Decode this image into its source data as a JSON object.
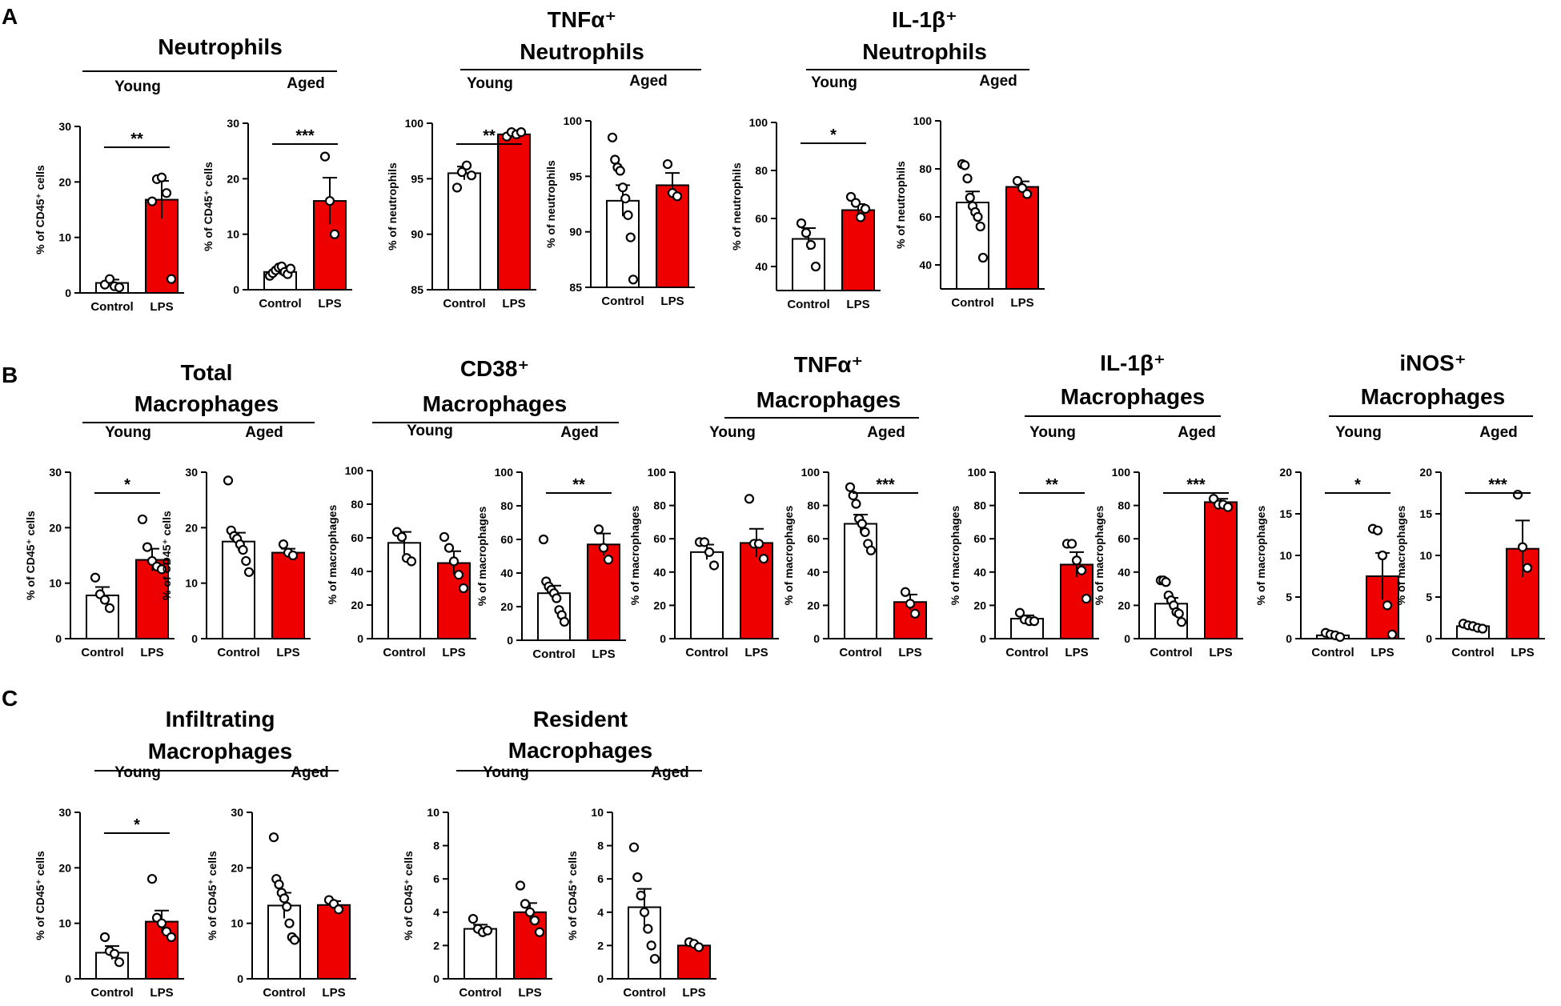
{
  "figure": {
    "panel_letters": [
      "A",
      "B",
      "C"
    ],
    "group_labels": {
      "young": "Young",
      "aged": "Aged"
    },
    "x_labels": [
      "Control",
      "LPS"
    ],
    "colors": {
      "control_fill": "#ffffff",
      "lps_fill": "#ee0000",
      "stroke": "#000000"
    }
  },
  "chart_data": [
    {
      "id": "A1",
      "type": "bar",
      "panel": "A",
      "title_lines": [
        "Neutrophils"
      ],
      "group": "Young",
      "categories": [
        "Control",
        "LPS"
      ],
      "values": [
        1.8,
        16.8
      ],
      "errors": [
        0.6,
        3.4
      ],
      "points": [
        [
          1.5,
          2.5,
          1.2,
          1.0
        ],
        [
          16.5,
          20.5,
          20.8,
          18.0,
          2.5
        ]
      ],
      "ylim": [
        0,
        30
      ],
      "yticks": [
        0,
        10,
        20,
        30
      ],
      "ylabel": "% of CD45⁺ cells",
      "sig": "**"
    },
    {
      "id": "A2",
      "type": "bar",
      "panel": "A",
      "group": "Aged",
      "categories": [
        "Control",
        "LPS"
      ],
      "values": [
        3.2,
        16.0
      ],
      "errors": [
        0.5,
        4.2
      ],
      "points": [
        [
          2.5,
          3.0,
          3.5,
          4.0,
          4.2,
          3.2,
          2.8,
          3.8
        ],
        [
          24.0,
          16.0,
          10.0
        ]
      ],
      "ylim": [
        0,
        30
      ],
      "yticks": [
        0,
        10,
        20,
        30
      ],
      "ylabel": "% of CD45⁺ cells",
      "sig": "***"
    },
    {
      "id": "A3",
      "type": "bar",
      "panel": "A",
      "title_lines": [
        "TNFα⁺",
        "Neutrophils"
      ],
      "group": "Young",
      "categories": [
        "Control",
        "LPS"
      ],
      "values": [
        95.5,
        99.0
      ],
      "errors": [
        0.6,
        0.25
      ],
      "points": [
        [
          94.2,
          95.6,
          96.2,
          95.3
        ],
        [
          98.8,
          99.2,
          99.0,
          99.2
        ]
      ],
      "ylim": [
        85,
        100
      ],
      "yticks": [
        85,
        90,
        95,
        100
      ],
      "ylabel": "% of neutrophils",
      "sig": "**"
    },
    {
      "id": "A4",
      "type": "bar",
      "panel": "A",
      "group": "Aged",
      "categories": [
        "Control",
        "LPS"
      ],
      "values": [
        92.8,
        94.2
      ],
      "errors": [
        1.4,
        1.1
      ],
      "points": [
        [
          98.5,
          96.5,
          95.8,
          95.5,
          94.0,
          93.0,
          91.5,
          89.5,
          85.7
        ],
        [
          96.1,
          93.5,
          93.2
        ]
      ],
      "ylim": [
        85,
        100
      ],
      "yticks": [
        85,
        90,
        95,
        100
      ],
      "ylabel": "% of neutrophils",
      "sig": ""
    },
    {
      "id": "A5",
      "type": "bar",
      "panel": "A",
      "title_lines": [
        "IL-1β⁺",
        "Neutrophils"
      ],
      "group": "Young",
      "categories": [
        "Control",
        "LPS"
      ],
      "values": [
        51.5,
        63.5
      ],
      "errors": [
        4.5,
        2.5
      ],
      "points": [
        [
          58.0,
          54.0,
          49.0,
          40.0
        ],
        [
          69.0,
          66.5,
          60.5,
          64.0
        ]
      ],
      "ylim": [
        30,
        100
      ],
      "yticks": [
        40,
        60,
        80,
        100
      ],
      "ylabel": "% of neutrophils",
      "sig": "*"
    },
    {
      "id": "A6",
      "type": "bar",
      "panel": "A",
      "group": "Aged",
      "categories": [
        "Control",
        "LPS"
      ],
      "values": [
        66.0,
        72.5
      ],
      "errors": [
        4.6,
        2.3
      ],
      "points": [
        [
          82.0,
          81.5,
          76.0,
          68.0,
          64.5,
          62.0,
          60.0,
          56.0,
          43.0
        ],
        [
          75.0,
          72.0,
          69.5
        ]
      ],
      "ylim": [
        30,
        100
      ],
      "yticks": [
        40,
        60,
        80,
        100
      ],
      "ylabel": "% of neutrophils",
      "sig": ""
    },
    {
      "id": "B1",
      "type": "bar",
      "panel": "B",
      "title_lines": [
        "Total",
        "Macrophages"
      ],
      "group": "Young",
      "categories": [
        "Control",
        "LPS"
      ],
      "values": [
        7.8,
        14.2
      ],
      "errors": [
        1.5,
        2.0
      ],
      "points": [
        [
          11.0,
          8.0,
          7.0,
          5.5
        ],
        [
          21.5,
          16.5,
          14.0,
          13.0,
          12.5
        ]
      ],
      "ylim": [
        0,
        30
      ],
      "yticks": [
        0,
        10,
        20,
        30
      ],
      "ylabel": "% of CD45⁺ cells",
      "sig": "*"
    },
    {
      "id": "B2",
      "type": "bar",
      "panel": "B",
      "group": "Aged",
      "categories": [
        "Control",
        "LPS"
      ],
      "values": [
        17.5,
        15.5
      ],
      "errors": [
        1.6,
        0.7
      ],
      "points": [
        [
          28.5,
          19.5,
          18.5,
          18.0,
          17.0,
          16.0,
          14.0,
          12.0
        ],
        [
          17.0,
          15.5,
          15.0
        ]
      ],
      "ylim": [
        0,
        30
      ],
      "yticks": [
        0,
        10,
        20,
        30
      ],
      "ylabel": "% of CD45⁺ cells",
      "sig": ""
    },
    {
      "id": "B3",
      "type": "bar",
      "panel": "B",
      "title_lines": [
        "CD38⁺",
        "Macrophages"
      ],
      "group": "Young",
      "categories": [
        "Control",
        "LPS"
      ],
      "values": [
        57.0,
        45.0
      ],
      "errors": [
        6.5,
        7.0
      ],
      "points": [
        [
          63.5,
          60.5,
          48.0,
          46.0
        ],
        [
          60.5,
          54.0,
          46.0,
          38.0,
          30.0
        ]
      ],
      "ylim": [
        0,
        100
      ],
      "yticks": [
        0,
        20,
        40,
        60,
        80,
        100
      ],
      "ylabel": "% of macrophages",
      "sig": ""
    },
    {
      "id": "B4",
      "type": "bar",
      "panel": "B",
      "group": "Aged",
      "categories": [
        "Control",
        "LPS"
      ],
      "values": [
        28.0,
        57.0
      ],
      "errors": [
        4.5,
        6.5
      ],
      "points": [
        [
          60.0,
          35.0,
          32.0,
          30.0,
          28.0,
          25.0,
          18.0,
          15.0,
          11.0
        ],
        [
          66.0,
          55.0,
          48.0
        ]
      ],
      "ylim": [
        0,
        100
      ],
      "yticks": [
        0,
        20,
        40,
        60,
        80,
        100
      ],
      "ylabel": "% of macrophages",
      "sig": "**"
    },
    {
      "id": "B5",
      "type": "bar",
      "panel": "B",
      "title_lines": [
        "TNFα⁺",
        "Macrophages"
      ],
      "group": "Young",
      "categories": [
        "Control",
        "LPS"
      ],
      "values": [
        52.0,
        57.5
      ],
      "errors": [
        4.5,
        8.5
      ],
      "points": [
        [
          58.0,
          58.0,
          52.0,
          44.0
        ],
        [
          84.0,
          57.0,
          57.0,
          48.0
        ]
      ],
      "ylim": [
        0,
        100
      ],
      "yticks": [
        0,
        20,
        40,
        60,
        80,
        100
      ],
      "ylabel": "% of macrophages",
      "sig": ""
    },
    {
      "id": "B6",
      "type": "bar",
      "panel": "B",
      "group": "Aged",
      "categories": [
        "Control",
        "LPS"
      ],
      "values": [
        69.0,
        22.0
      ],
      "errors": [
        5.5,
        4.5
      ],
      "points": [
        [
          91.0,
          86.0,
          81.0,
          72.0,
          69.0,
          64.0,
          57.0,
          53.0
        ],
        [
          28.0,
          21.0,
          15.0
        ]
      ],
      "ylim": [
        0,
        100
      ],
      "yticks": [
        0,
        20,
        40,
        60,
        80,
        100
      ],
      "ylabel": "% of macrophages",
      "sig": "***"
    },
    {
      "id": "B7",
      "type": "bar",
      "panel": "B",
      "title_lines": [
        "IL-1β⁺",
        "Macrophages"
      ],
      "group": "Young",
      "categories": [
        "Control",
        "LPS"
      ],
      "values": [
        12.0,
        44.5
      ],
      "errors": [
        2.0,
        7.5
      ],
      "points": [
        [
          15.5,
          11.5,
          10.5,
          10.5
        ],
        [
          57.0,
          57.0,
          47.0,
          41.0,
          24.0
        ]
      ],
      "ylim": [
        0,
        100
      ],
      "yticks": [
        0,
        20,
        40,
        60,
        80,
        100
      ],
      "ylabel": "% of macrophages",
      "sig": "**"
    },
    {
      "id": "B8",
      "type": "bar",
      "panel": "B",
      "group": "Aged",
      "categories": [
        "Control",
        "LPS"
      ],
      "values": [
        21.0,
        82.0
      ],
      "errors": [
        3.5,
        2.0
      ],
      "points": [
        [
          35.0,
          35.0,
          34.0,
          26.0,
          23.0,
          20.0,
          16.0,
          15.0,
          10.0
        ],
        [
          84.0,
          80.5,
          80.5,
          79.0
        ]
      ],
      "ylim": [
        0,
        100
      ],
      "yticks": [
        0,
        20,
        40,
        60,
        80,
        100
      ],
      "ylabel": "% of macrophages",
      "sig": "***"
    },
    {
      "id": "B9",
      "type": "bar",
      "panel": "B",
      "title_lines": [
        "iNOS⁺",
        "Macrophages"
      ],
      "group": "Young",
      "categories": [
        "Control",
        "LPS"
      ],
      "values": [
        0.4,
        7.5
      ],
      "errors": [
        0.1,
        2.8
      ],
      "points": [
        [
          0.7,
          0.5,
          0.4,
          0.2
        ],
        [
          13.2,
          13.0,
          10.0,
          4.0,
          0.5
        ]
      ],
      "ylim": [
        0,
        20
      ],
      "yticks": [
        0,
        5,
        10,
        15,
        20
      ],
      "ylabel": "% of macrophages",
      "sig": "*"
    },
    {
      "id": "B10",
      "type": "bar",
      "panel": "B",
      "group": "Aged",
      "categories": [
        "Control",
        "LPS"
      ],
      "values": [
        1.5,
        10.8
      ],
      "errors": [
        0.15,
        3.4
      ],
      "points": [
        [
          1.8,
          1.6,
          1.5,
          1.3,
          1.2
        ],
        [
          17.3,
          11.0,
          8.5
        ]
      ],
      "ylim": [
        0,
        20
      ],
      "yticks": [
        0,
        5,
        10,
        15,
        20
      ],
      "ylabel": "% of macrophages",
      "sig": "***"
    },
    {
      "id": "C1",
      "type": "bar",
      "panel": "C",
      "title_lines": [
        "Infiltrating",
        "Macrophages"
      ],
      "group": "Young",
      "categories": [
        "Control",
        "LPS"
      ],
      "values": [
        4.7,
        10.3
      ],
      "errors": [
        1.2,
        2.0
      ],
      "points": [
        [
          7.5,
          5.0,
          4.5,
          3.0
        ],
        [
          18.0,
          11.0,
          10.0,
          8.5,
          7.5
        ]
      ],
      "ylim": [
        0,
        30
      ],
      "yticks": [
        0,
        10,
        20,
        30
      ],
      "ylabel": "% of CD45⁺ cells",
      "sig": "*"
    },
    {
      "id": "C2",
      "type": "bar",
      "panel": "C",
      "group": "Aged",
      "categories": [
        "Control",
        "LPS"
      ],
      "values": [
        13.2,
        13.3
      ],
      "errors": [
        2.3,
        0.7
      ],
      "points": [
        [
          25.5,
          18.0,
          17.0,
          15.5,
          14.5,
          13.0,
          10.0,
          7.5,
          7.0
        ],
        [
          14.2,
          13.5,
          12.5
        ]
      ],
      "ylim": [
        0,
        30
      ],
      "yticks": [
        0,
        10,
        20,
        30
      ],
      "ylabel": "% of CD45⁺ cells",
      "sig": ""
    },
    {
      "id": "C3",
      "type": "bar",
      "panel": "C",
      "title_lines": [
        "Resident",
        "Macrophages"
      ],
      "group": "Young",
      "categories": [
        "Control",
        "LPS"
      ],
      "values": [
        3.0,
        4.0
      ],
      "errors": [
        0.25,
        0.55
      ],
      "points": [
        [
          3.6,
          3.0,
          2.8,
          2.9
        ],
        [
          5.6,
          4.5,
          4.0,
          3.5,
          2.8
        ]
      ],
      "ylim": [
        0,
        10
      ],
      "yticks": [
        0,
        2,
        4,
        6,
        8,
        10
      ],
      "ylabel": "% of CD45⁺ cells",
      "sig": ""
    },
    {
      "id": "C4",
      "type": "bar",
      "panel": "C",
      "group": "Aged",
      "categories": [
        "Control",
        "LPS"
      ],
      "values": [
        4.3,
        2.0
      ],
      "errors": [
        1.1,
        0.1
      ],
      "points": [
        [
          7.9,
          6.1,
          5.0,
          4.0,
          3.0,
          2.0,
          1.2
        ],
        [
          2.2,
          2.1,
          1.9
        ]
      ],
      "ylim": [
        0,
        10
      ],
      "yticks": [
        0,
        2,
        4,
        6,
        8,
        10
      ],
      "ylabel": "% of CD45⁺ cells",
      "sig": ""
    }
  ]
}
